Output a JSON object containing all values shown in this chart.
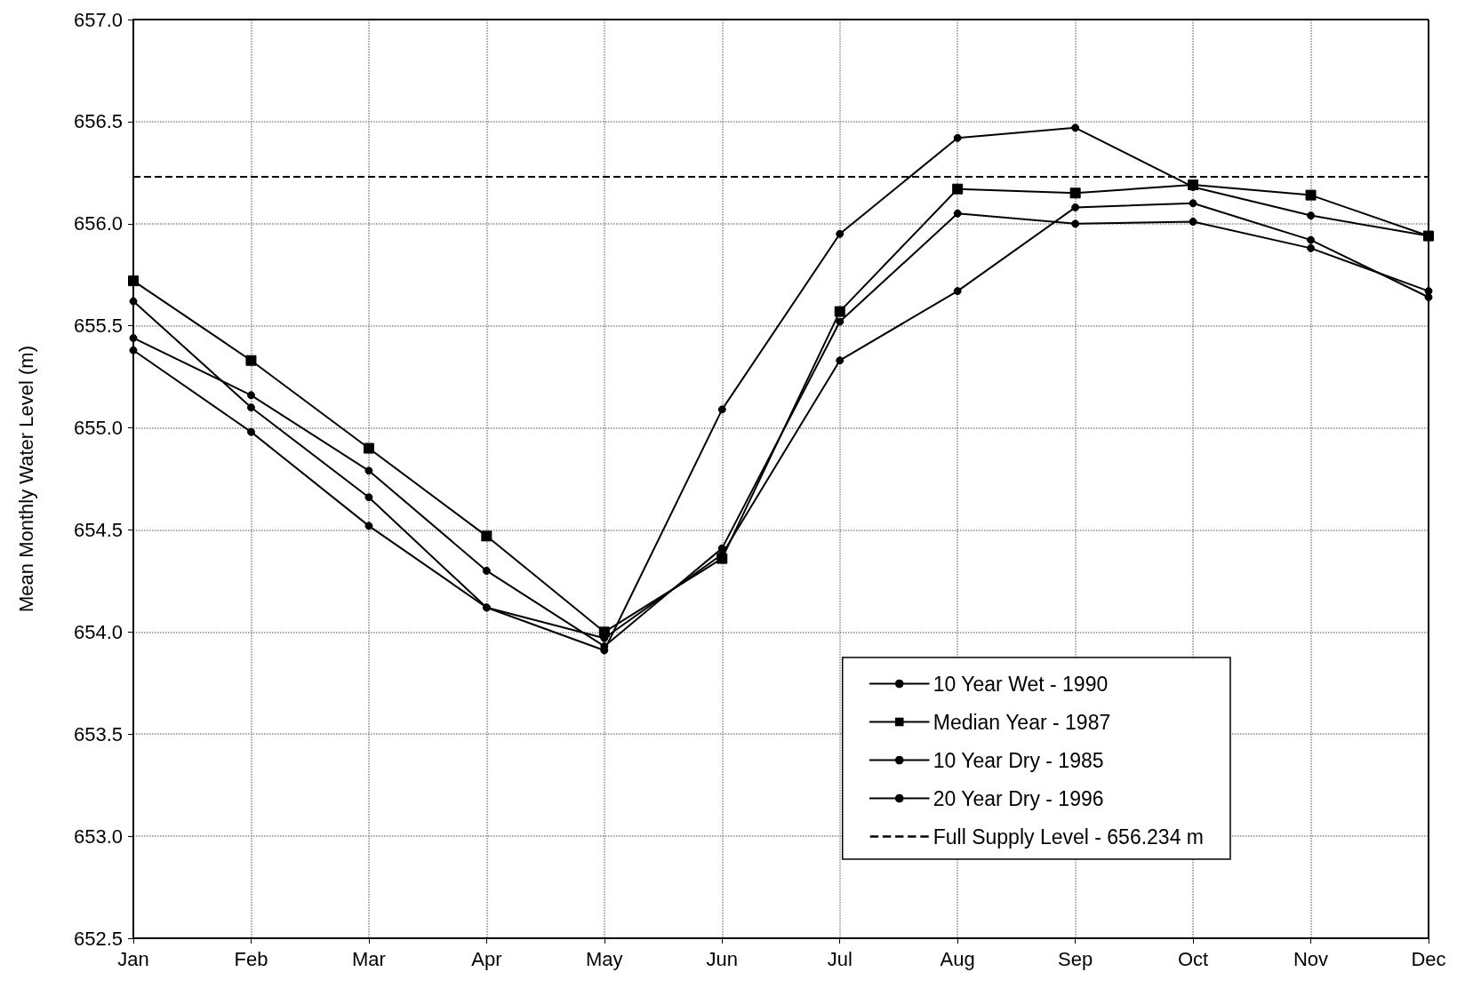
{
  "chart_data": {
    "type": "line",
    "ylabel": "Mean Monthly Water Level (m)",
    "categories": [
      "Jan",
      "Feb",
      "Mar",
      "Apr",
      "May",
      "Jun",
      "Jul",
      "Aug",
      "Sep",
      "Oct",
      "Nov",
      "Dec"
    ],
    "series": [
      {
        "name": "10 Year Wet - 1990",
        "color": "#000000",
        "marker": "circle",
        "values": [
          655.38,
          654.98,
          654.52,
          654.12,
          653.91,
          655.09,
          655.95,
          656.42,
          656.47,
          656.18,
          656.04,
          655.94
        ]
      },
      {
        "name": "Median Year - 1987",
        "color": "#000000",
        "marker": "square",
        "values": [
          655.72,
          655.33,
          654.9,
          654.47,
          654.0,
          654.36,
          655.57,
          656.17,
          656.15,
          656.19,
          656.14,
          655.94
        ]
      },
      {
        "name": "10 Year Dry - 1985",
        "color": "#000000",
        "marker": "circle",
        "values": [
          655.44,
          655.16,
          654.79,
          654.3,
          653.93,
          654.41,
          655.52,
          656.05,
          656.0,
          656.01,
          655.88,
          655.67
        ]
      },
      {
        "name": "20 Year Dry - 1996",
        "color": "#000000",
        "marker": "circle",
        "values": [
          655.62,
          655.1,
          654.66,
          654.12,
          653.97,
          654.38,
          655.33,
          655.67,
          656.08,
          656.1,
          655.92,
          655.64
        ]
      }
    ],
    "ylim": [
      652.5,
      657.0
    ],
    "yticks": [
      {
        "value": 652.5,
        "label": "652.5"
      },
      {
        "value": 653,
        "label": "653.0"
      },
      {
        "value": 653.5,
        "label": "653.5"
      },
      {
        "value": 654,
        "label": "654.0"
      },
      {
        "value": 654.5,
        "label": "654.5"
      },
      {
        "value": 655,
        "label": "655.0"
      },
      {
        "value": 655.5,
        "label": "655.5"
      },
      {
        "value": 656,
        "label": "656.0"
      },
      {
        "value": 656.5,
        "label": "656.5"
      },
      {
        "value": 657,
        "label": "657.0"
      }
    ],
    "ref_lines": [
      {
        "axis": "y",
        "value": 656.234,
        "label": "Full Supply Level - 656.234 m",
        "color": "#000000",
        "line_style": "dashed"
      }
    ],
    "grid": true,
    "legend": "bottom right",
    "line_style": "solid"
  }
}
